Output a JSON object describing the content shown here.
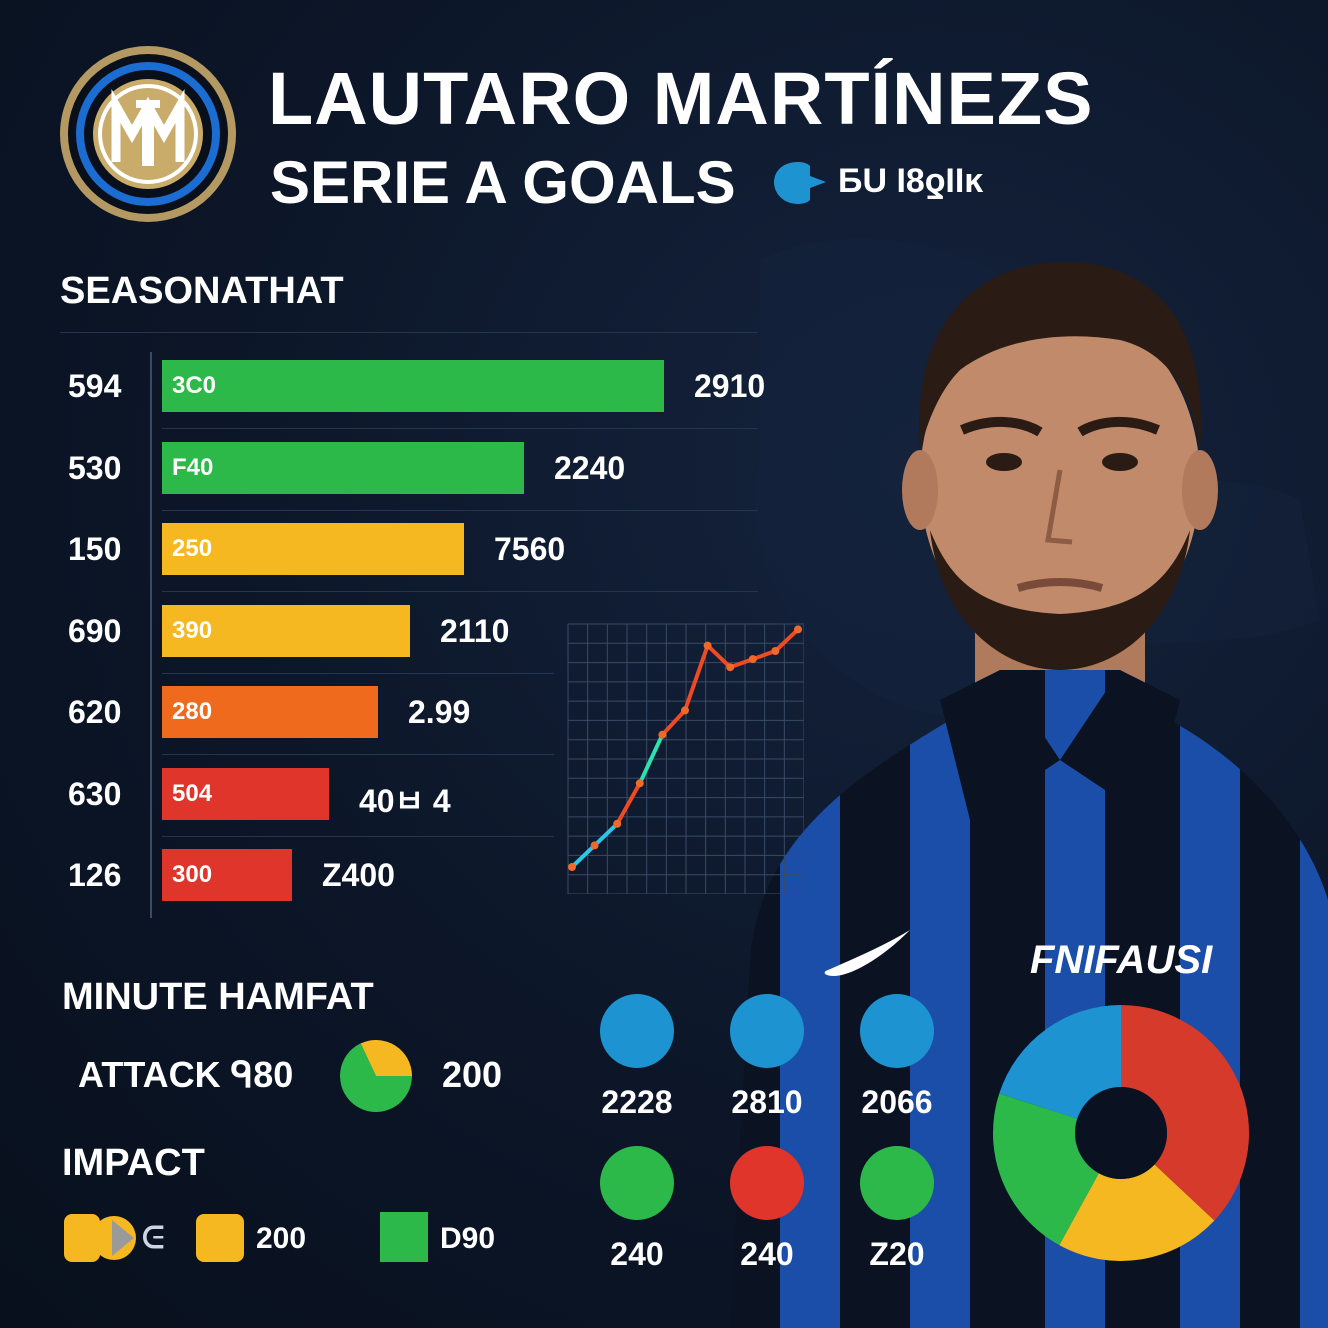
{
  "header": {
    "title": "LAUTARO MARTÍNEZS",
    "subtitle": "SERIE A GOALS",
    "subtitle_code": "БU I8ƍIIĸ"
  },
  "player": {
    "shirt_text": "FNIFAUSI"
  },
  "colors": {
    "green": "#2db84a",
    "yellow": "#f5b820",
    "orange": "#f06a1e",
    "red": "#e0352a",
    "blue": "#1e93d2",
    "dark_red": "#d63a2a"
  },
  "chart_data": [
    {
      "type": "bar",
      "title": "SEASONATHAT",
      "categories": [
        "594",
        "530",
        "150",
        "690",
        "620",
        "630",
        "126"
      ],
      "bar_labels": [
        "3C0",
        "F40",
        "250",
        "390",
        "280",
        "504",
        "300"
      ],
      "value_labels": [
        "2910",
        "2240",
        "7560",
        "2110",
        "2.99",
        "40ㅂ  4",
        "Z400"
      ],
      "values": [
        0.93,
        0.67,
        0.56,
        0.46,
        0.4,
        0.31,
        0.24
      ],
      "colors": [
        "green",
        "green",
        "yellow",
        "yellow",
        "orange",
        "red",
        "red"
      ]
    },
    {
      "type": "line",
      "series": [
        {
          "values": [
            1.0,
            1.8,
            2.6,
            4.1,
            5.9,
            6.8,
            9.2,
            8.4,
            8.7,
            9.0,
            9.8
          ]
        }
      ],
      "grid": true
    },
    {
      "type": "pie",
      "title": "MINUTE HAMFAT",
      "label": "ATTACK ᑫ80",
      "value_label": "200",
      "slices": [
        {
          "color": "green",
          "value": 0.68
        },
        {
          "color": "yellow",
          "value": 0.32
        }
      ]
    },
    {
      "type": "pie",
      "donut": true,
      "slices": [
        {
          "color": "dark_red",
          "value": 0.37
        },
        {
          "color": "yellow",
          "value": 0.21
        },
        {
          "color": "green",
          "value": 0.22
        },
        {
          "color": "blue",
          "value": 0.2
        }
      ]
    }
  ],
  "circle_stats": [
    {
      "color": "blue",
      "label": "2228"
    },
    {
      "color": "blue",
      "label": "2810"
    },
    {
      "color": "blue",
      "label": "2066"
    },
    {
      "color": "green",
      "label": "240"
    },
    {
      "color": "red",
      "label": "240"
    },
    {
      "color": "green",
      "label": "Z20"
    }
  ],
  "impact": {
    "title": "IMPACT",
    "items": [
      {
        "label": "ᕮ"
      },
      {
        "label": "200"
      },
      {
        "label": "D90"
      }
    ]
  }
}
